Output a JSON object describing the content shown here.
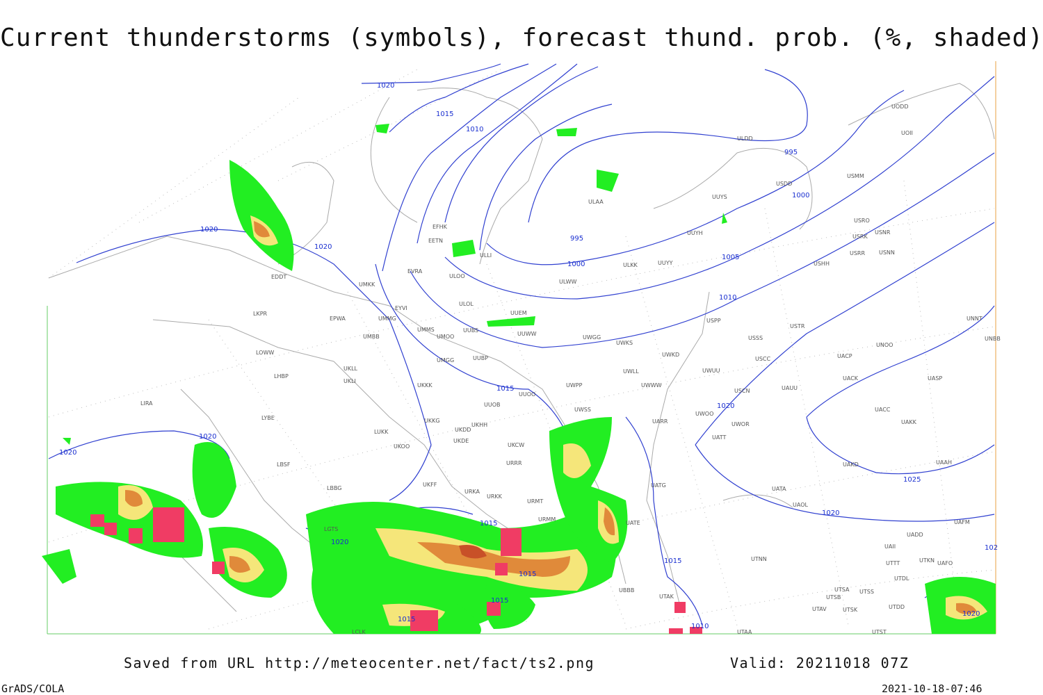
{
  "header": {
    "title": "Current thunderstorms (symbols), forecast thund. prob. (%, shaded)"
  },
  "isobar_labels": [
    1020,
    1015,
    1010,
    995,
    1000,
    995,
    1000,
    1005,
    1010,
    1020,
    1020,
    1015,
    1020,
    1025,
    1020,
    1020,
    1020,
    1020,
    1015,
    1015,
    1015,
    1015,
    1015,
    1010,
    1020,
    102
  ],
  "stations": [
    "ULDD",
    "UODD",
    "UOII",
    "USMM",
    "USDD",
    "UUYS",
    "ULAA",
    "UUYH",
    "USRO",
    "USNR",
    "USRK",
    "USRR",
    "USNN",
    "USHH",
    "ULKK",
    "UUYY",
    "ULWW",
    "EFHK",
    "EETN",
    "ULLI",
    "EVRA",
    "ULOO",
    "EDDT",
    "UMKK",
    "ULOL",
    "EYVI",
    "UUEM",
    "LKPR",
    "EPWA",
    "UMMG",
    "USPP",
    "USTR",
    "UUWW",
    "UMMS",
    "UMOO",
    "UUBS",
    "UWGG",
    "UWKS",
    "USSS",
    "UNOO",
    "UNNT",
    "UNBB",
    "UMBB",
    "LOWW",
    "UWKD",
    "UMGG",
    "UUBP",
    "USCC",
    "UACP",
    "UKLL",
    "UKLI",
    "LHBP",
    "UWLL",
    "UWUU",
    "UACK",
    "UASP",
    "UKKK",
    "UWPP",
    "UWWW",
    "USCN",
    "UAUU",
    "UUOO",
    "LIRA",
    "UUOB",
    "UACC",
    "LYBE",
    "UKKG",
    "UKHH",
    "UKDD",
    "UWSS",
    "UARR",
    "UWOO",
    "UWOR",
    "UAKK",
    "LUKK",
    "UKOO",
    "UKDE",
    "UKCW",
    "UATT",
    "LBSF",
    "URRR",
    "UAKD",
    "UAAH",
    "LBBG",
    "UKFF",
    "URKA",
    "URKK",
    "URMT",
    "UATG",
    "UATA",
    "UAOL",
    "UATE",
    "URMM",
    "UAFM",
    "LGTS",
    "UADD",
    "UAII",
    "UTTT",
    "UTKN",
    "UAFO",
    "UTNN",
    "UBBB",
    "UTSA",
    "UTSB",
    "UTSS",
    "UTAK",
    "UTAV",
    "UTSK",
    "UTDD",
    "UTAA",
    "UTST",
    "LCLK",
    "UTDL"
  ],
  "footer": {
    "source": "Saved from URL http://meteocenter.net/fact/ts2.png",
    "valid": "Valid: 20211018 07Z",
    "software": "GrADS/COLA",
    "timestamp": "2021-10-18-07:46"
  }
}
